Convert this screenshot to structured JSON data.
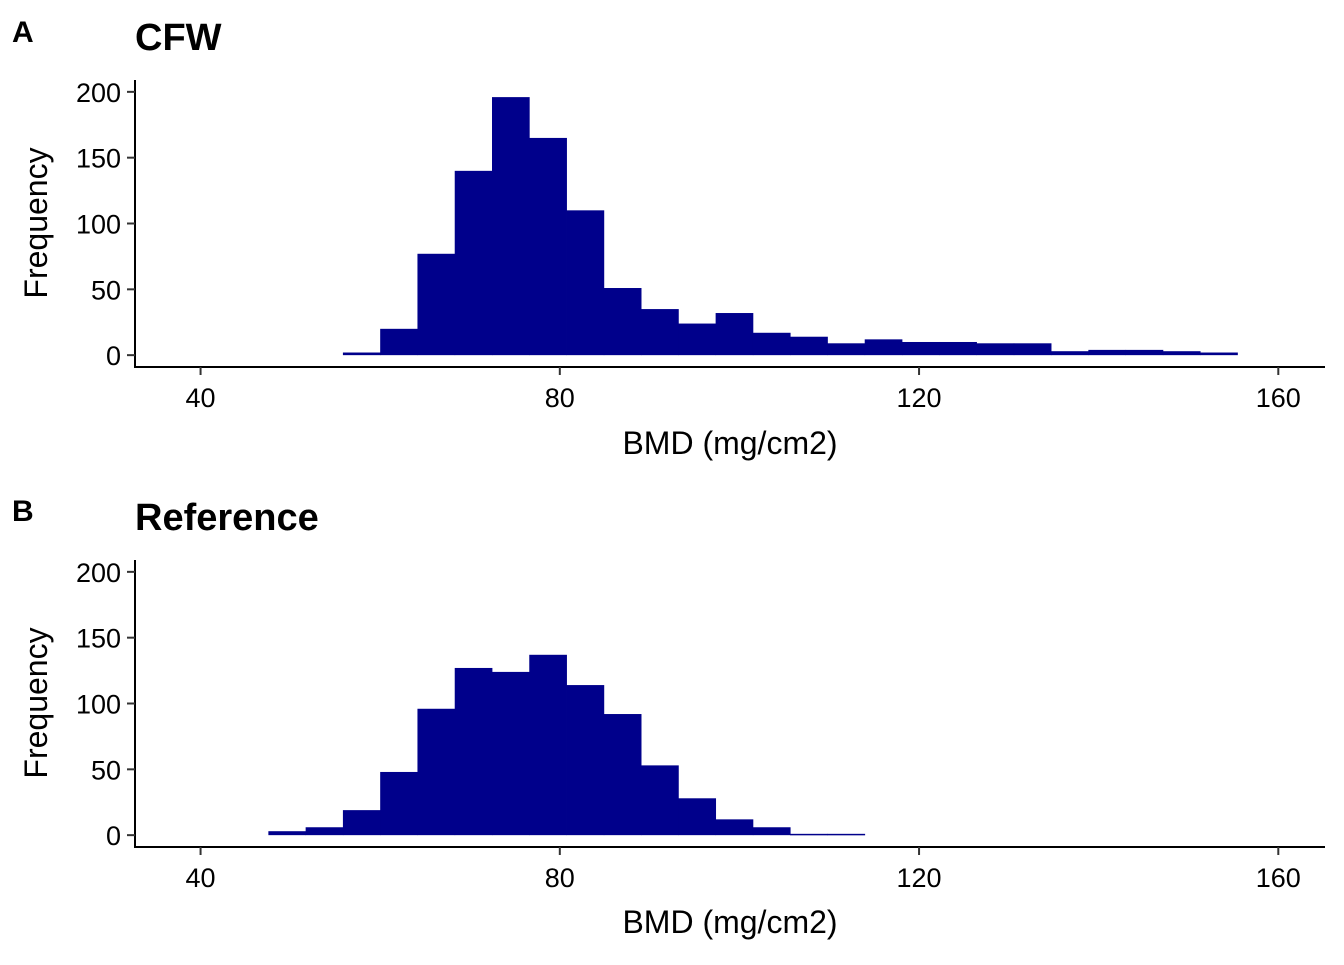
{
  "chart_data": [
    {
      "type": "bar",
      "subtype": "histogram",
      "panel_label": "A",
      "title": "CFW",
      "xlabel": "BMD (mg/cm2)",
      "ylabel": "Frequency",
      "xlim": [
        32.7,
        165.2
      ],
      "ylim": [
        -9,
        209
      ],
      "xticks": [
        40,
        80,
        120,
        160
      ],
      "yticks": [
        0,
        50,
        100,
        150,
        200
      ],
      "grid": false,
      "bar_color": "#00008B",
      "bin_width": 4.15,
      "bins": [
        {
          "x0": 55.85,
          "x1": 60.0,
          "value": 2
        },
        {
          "x0": 60.0,
          "x1": 64.15,
          "value": 20
        },
        {
          "x0": 64.15,
          "x1": 68.3,
          "value": 77
        },
        {
          "x0": 68.3,
          "x1": 72.45,
          "value": 140
        },
        {
          "x0": 72.45,
          "x1": 76.6,
          "value": 196
        },
        {
          "x0": 76.6,
          "x1": 80.75,
          "value": 165
        },
        {
          "x0": 80.75,
          "x1": 84.9,
          "value": 110
        },
        {
          "x0": 84.9,
          "x1": 89.05,
          "value": 51
        },
        {
          "x0": 89.05,
          "x1": 93.2,
          "value": 35
        },
        {
          "x0": 93.2,
          "x1": 97.35,
          "value": 24
        },
        {
          "x0": 97.35,
          "x1": 101.5,
          "value": 32
        },
        {
          "x0": 101.5,
          "x1": 105.65,
          "value": 17
        },
        {
          "x0": 105.65,
          "x1": 109.8,
          "value": 14
        },
        {
          "x0": 109.8,
          "x1": 113.95,
          "value": 9
        },
        {
          "x0": 113.95,
          "x1": 118.1,
          "value": 12
        },
        {
          "x0": 118.1,
          "x1": 122.25,
          "value": 10
        },
        {
          "x0": 122.25,
          "x1": 126.4,
          "value": 10
        },
        {
          "x0": 126.4,
          "x1": 130.55,
          "value": 9
        },
        {
          "x0": 130.55,
          "x1": 134.7,
          "value": 9
        },
        {
          "x0": 134.7,
          "x1": 138.85,
          "value": 3
        },
        {
          "x0": 138.85,
          "x1": 143.0,
          "value": 4
        },
        {
          "x0": 143.0,
          "x1": 147.15,
          "value": 4
        },
        {
          "x0": 147.15,
          "x1": 151.3,
          "value": 3
        },
        {
          "x0": 151.3,
          "x1": 155.45,
          "value": 2
        }
      ]
    },
    {
      "type": "bar",
      "subtype": "histogram",
      "panel_label": "B",
      "title": "Reference",
      "xlabel": "BMD (mg/cm2)",
      "ylabel": "Frequency",
      "xlim": [
        32.7,
        165.2
      ],
      "ylim": [
        -9,
        209
      ],
      "xticks": [
        40,
        80,
        120,
        160
      ],
      "yticks": [
        0,
        50,
        100,
        150,
        200
      ],
      "grid": false,
      "bar_color": "#00008B",
      "bin_width": 4.15,
      "bins": [
        {
          "x0": 47.55,
          "x1": 51.7,
          "value": 3
        },
        {
          "x0": 51.7,
          "x1": 55.85,
          "value": 6
        },
        {
          "x0": 55.85,
          "x1": 60.0,
          "value": 19
        },
        {
          "x0": 60.0,
          "x1": 64.15,
          "value": 48
        },
        {
          "x0": 64.15,
          "x1": 68.3,
          "value": 96
        },
        {
          "x0": 68.3,
          "x1": 72.45,
          "value": 127
        },
        {
          "x0": 72.45,
          "x1": 76.6,
          "value": 124
        },
        {
          "x0": 76.6,
          "x1": 80.75,
          "value": 137
        },
        {
          "x0": 80.75,
          "x1": 84.9,
          "value": 114
        },
        {
          "x0": 84.9,
          "x1": 89.05,
          "value": 92
        },
        {
          "x0": 89.05,
          "x1": 93.2,
          "value": 53
        },
        {
          "x0": 93.2,
          "x1": 97.35,
          "value": 28
        },
        {
          "x0": 97.35,
          "x1": 101.5,
          "value": 12
        },
        {
          "x0": 101.5,
          "x1": 105.65,
          "value": 6
        },
        {
          "x0": 105.65,
          "x1": 109.8,
          "value": 1
        },
        {
          "x0": 109.8,
          "x1": 113.95,
          "value": 1
        }
      ]
    }
  ]
}
